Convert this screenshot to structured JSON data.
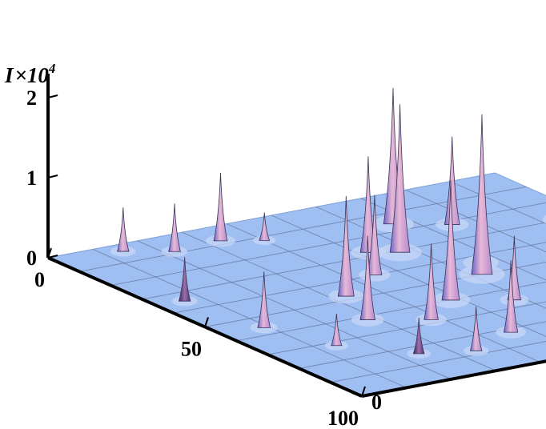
{
  "chart_data": {
    "type": "surface3d",
    "xlabel": "",
    "ylabel": "",
    "zlabel": {
      "symbol": "I",
      "times": "×",
      "base": "10",
      "exponent": "4"
    },
    "xlim": [
      0,
      100
    ],
    "ylim": [
      0,
      100
    ],
    "zlim": [
      0,
      2.2
    ],
    "x_ticks": [
      "0",
      "50",
      "100"
    ],
    "y_ticks": [
      "0",
      "50",
      "100"
    ],
    "z_ticks": [
      "0",
      "1",
      "2"
    ],
    "grid": true,
    "surface_color": "#9fbff2",
    "peak_color": "#d7a3c8",
    "deep_peak_color": "#5d3d7a",
    "peaks": [
      {
        "x": 4,
        "y": 14,
        "z": 0.55
      },
      {
        "x": 8,
        "y": 33,
        "z": 0.85
      },
      {
        "x": 9,
        "y": 22,
        "z": 0.6
      },
      {
        "x": 12,
        "y": 40,
        "z": 0.35
      },
      {
        "x": 16,
        "y": 66,
        "z": 1.7
      },
      {
        "x": 22,
        "y": 75,
        "z": 1.1
      },
      {
        "x": 28,
        "y": 52,
        "z": 1.2
      },
      {
        "x": 30,
        "y": 94,
        "z": 1.5
      },
      {
        "x": 31,
        "y": 57,
        "z": 1.85
      },
      {
        "x": 35,
        "y": 6,
        "z": 0.55
      },
      {
        "x": 40,
        "y": 45,
        "z": 1.0
      },
      {
        "x": 40,
        "y": 90,
        "z": 2.25
      },
      {
        "x": 44,
        "y": 66,
        "z": 1.3
      },
      {
        "x": 48,
        "y": 33,
        "z": 1.25
      },
      {
        "x": 50,
        "y": 62,
        "z": 2.0
      },
      {
        "x": 56,
        "y": 9,
        "z": 0.7
      },
      {
        "x": 60,
        "y": 48,
        "z": 1.5
      },
      {
        "x": 62,
        "y": 28,
        "z": 1.05
      },
      {
        "x": 66,
        "y": 58,
        "z": 0.8
      },
      {
        "x": 68,
        "y": 38,
        "z": 0.95
      },
      {
        "x": 72,
        "y": 14,
        "z": 0.4
      },
      {
        "x": 72,
        "y": 82,
        "z": 0.9
      },
      {
        "x": 75,
        "y": 70,
        "z": 0.45
      },
      {
        "x": 82,
        "y": 46,
        "z": 0.9
      },
      {
        "x": 84,
        "y": 24,
        "z": 0.45
      },
      {
        "x": 86,
        "y": 58,
        "z": 0.85
      },
      {
        "x": 88,
        "y": 34,
        "z": 0.55
      },
      {
        "x": 92,
        "y": 88,
        "z": 0.75
      },
      {
        "x": 94,
        "y": 72,
        "z": 1.25
      },
      {
        "x": 95,
        "y": 96,
        "z": 0.35
      },
      {
        "x": 97,
        "y": 52,
        "z": 0.5
      },
      {
        "x": 98,
        "y": 80,
        "z": 0.25
      }
    ]
  }
}
